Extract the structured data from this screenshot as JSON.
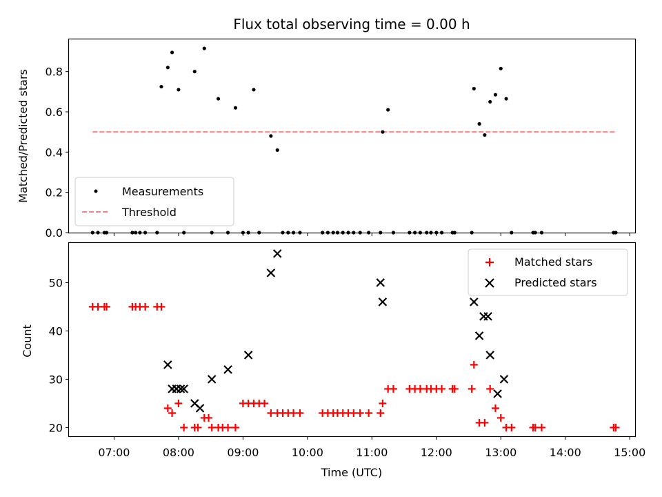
{
  "chart_data": [
    {
      "type": "scatter",
      "title": "Flux total observing time = 0.00 h",
      "xlabel": "",
      "ylabel": "Matched/Predicted stars",
      "xlim": [
        "06:18",
        "15:05"
      ],
      "ylim": [
        0,
        0.96
      ],
      "yticks": [
        0.0,
        0.2,
        0.4,
        0.6,
        0.8
      ],
      "ytick_labels": [
        "0.0",
        "0.2",
        "0.4",
        "0.6",
        "0.8"
      ],
      "grid": false,
      "legend": {
        "placement": "lower-left",
        "entries": [
          {
            "label": "Measurements",
            "marker": "dot",
            "color": "#000000"
          },
          {
            "label": "Threshold",
            "marker": "dashed-line",
            "color": "#ff7f7f"
          }
        ]
      },
      "series": [
        {
          "name": "Measurements",
          "color": "#000000",
          "x": [
            "06:40",
            "06:45",
            "06:51",
            "06:53",
            "07:17",
            "07:20",
            "07:24",
            "07:29",
            "07:40",
            "07:44",
            "07:50",
            "07:54",
            "08:00",
            "08:05",
            "08:15",
            "08:24",
            "08:31",
            "08:37",
            "08:46",
            "08:53",
            "09:00",
            "09:05",
            "09:10",
            "09:15",
            "09:26",
            "09:32",
            "09:37",
            "09:42",
            "09:47",
            "09:53",
            "10:14",
            "10:19",
            "10:24",
            "10:28",
            "10:33",
            "10:38",
            "10:43",
            "10:49",
            "10:57",
            "11:08",
            "11:10",
            "11:15",
            "11:20",
            "11:35",
            "11:40",
            "11:45",
            "11:51",
            "11:55",
            "12:00",
            "12:05",
            "12:15",
            "12:17",
            "12:33",
            "12:35",
            "12:40",
            "12:45",
            "12:50",
            "12:55",
            "13:00",
            "13:05",
            "13:10",
            "13:30",
            "13:32",
            "13:38",
            "14:45",
            "14:47"
          ],
          "y": [
            0,
            0,
            0,
            0,
            0,
            0,
            0,
            0,
            0,
            0.725,
            0.82,
            0.895,
            0.71,
            0,
            0.8,
            0.915,
            0,
            0.665,
            0,
            0.62,
            0,
            0,
            0.71,
            0,
            0.48,
            0.41,
            0,
            0,
            0,
            0,
            0,
            0,
            0,
            0,
            0,
            0,
            0,
            0,
            0,
            0,
            0.5,
            0.61,
            0,
            0,
            0,
            0,
            0,
            0,
            0,
            0,
            0,
            0,
            0,
            0.715,
            0.54,
            0.485,
            0.65,
            0.685,
            0.815,
            0.665,
            0,
            0,
            0,
            0,
            0,
            0
          ]
        },
        {
          "name": "Threshold",
          "color": "#ff7f7f",
          "style": "dashed",
          "x": [
            "06:40",
            "14:47"
          ],
          "y": [
            0.5,
            0.5
          ]
        }
      ]
    },
    {
      "type": "scatter",
      "title": "",
      "xlabel": "Time (UTC)",
      "ylabel": "Count",
      "xlim": [
        "06:18",
        "15:05"
      ],
      "ylim": [
        18.2,
        58.2
      ],
      "yticks": [
        20,
        30,
        40,
        50
      ],
      "ytick_labels": [
        "20",
        "30",
        "40",
        "50"
      ],
      "xticks": [
        "07:00",
        "08:00",
        "09:00",
        "10:00",
        "11:00",
        "12:00",
        "13:00",
        "14:00",
        "15:00"
      ],
      "xtick_labels": [
        "07:00",
        "08:00",
        "09:00",
        "10:00",
        "11:00",
        "12:00",
        "13:00",
        "14:00",
        "15:00"
      ],
      "grid": false,
      "legend": {
        "placement": "upper-right",
        "entries": [
          {
            "label": "Matched stars",
            "marker": "plus",
            "color": "#ff0000"
          },
          {
            "label": "Predicted stars",
            "marker": "x",
            "color": "#000000"
          }
        ]
      },
      "series": [
        {
          "name": "Matched stars",
          "color": "#ff0000",
          "marker": "plus",
          "x": [
            "06:40",
            "06:45",
            "06:51",
            "06:53",
            "07:17",
            "07:20",
            "07:24",
            "07:29",
            "07:40",
            "07:44",
            "07:50",
            "07:54",
            "08:00",
            "08:05",
            "08:15",
            "08:18",
            "08:24",
            "08:28",
            "08:31",
            "08:37",
            "08:41",
            "08:46",
            "08:53",
            "09:00",
            "09:05",
            "09:10",
            "09:15",
            "09:20",
            "09:26",
            "09:32",
            "09:37",
            "09:42",
            "09:47",
            "09:53",
            "10:14",
            "10:19",
            "10:24",
            "10:28",
            "10:33",
            "10:38",
            "10:43",
            "10:49",
            "10:57",
            "11:08",
            "11:10",
            "11:15",
            "11:20",
            "11:35",
            "11:40",
            "11:45",
            "11:51",
            "11:55",
            "12:00",
            "12:05",
            "12:15",
            "12:17",
            "12:33",
            "12:35",
            "12:40",
            "12:45",
            "12:50",
            "12:55",
            "13:00",
            "13:05",
            "13:10",
            "13:30",
            "13:32",
            "13:38",
            "14:45",
            "14:47"
          ],
          "y": [
            45,
            45,
            45,
            45,
            45,
            45,
            45,
            45,
            45,
            45,
            24,
            23,
            25,
            20,
            20,
            20,
            22,
            22,
            20,
            20,
            20,
            20,
            20,
            25,
            25,
            25,
            25,
            25,
            23,
            23,
            23,
            23,
            23,
            23,
            23,
            23,
            23,
            23,
            23,
            23,
            23,
            23,
            23,
            23,
            25,
            28,
            28,
            28,
            28,
            28,
            28,
            28,
            28,
            28,
            28,
            28,
            28,
            33,
            21,
            21,
            28,
            24,
            22,
            20,
            20,
            20,
            20,
            20,
            20,
            20
          ]
        },
        {
          "name": "Predicted stars",
          "color": "#000000",
          "marker": "x",
          "x": [
            "07:50",
            "07:54",
            "07:58",
            "08:02",
            "08:05",
            "08:15",
            "08:20",
            "08:31",
            "08:46",
            "09:05",
            "09:26",
            "09:32",
            "11:08",
            "11:10",
            "12:35",
            "12:40",
            "12:44",
            "12:48",
            "12:50",
            "12:57",
            "13:03"
          ],
          "y": [
            33,
            28,
            28,
            28,
            28,
            25,
            24,
            30,
            32,
            35,
            52,
            56,
            50,
            46,
            46,
            39,
            43,
            43,
            35,
            27,
            30
          ]
        }
      ]
    }
  ]
}
